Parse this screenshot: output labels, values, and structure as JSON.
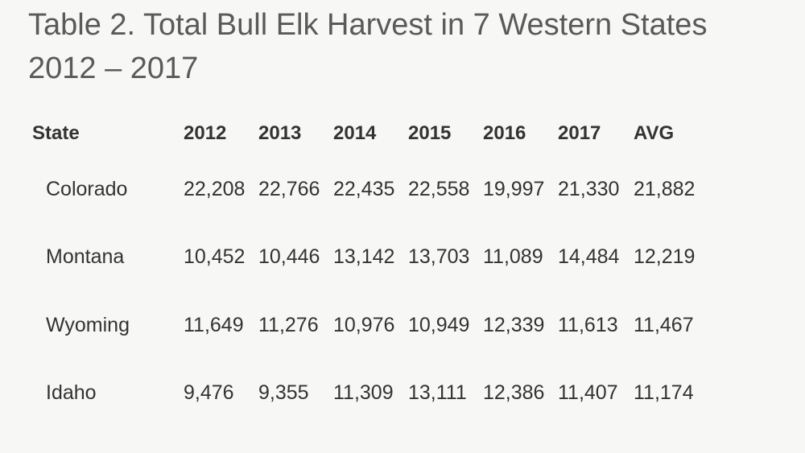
{
  "header": {
    "title": [
      "Table 2. Total Bull Elk Harvest in 7 Western States",
      "2012 – 2017"
    ]
  },
  "table": {
    "columns": [
      "State",
      "2012",
      "2013",
      "2014",
      "2015",
      "2016",
      "2017",
      "AVG"
    ],
    "rows": [
      [
        "Colorado",
        "22,208",
        "22,766",
        "22,435",
        "22,558",
        "19,997",
        "21,330",
        "21,882"
      ],
      [
        "Montana",
        "10,452",
        "10,446",
        "13,142",
        "13,703",
        "11,089",
        "14,484",
        "12,219"
      ],
      [
        "Wyoming",
        "11,649",
        "11,276",
        "10,976",
        "10,949",
        "12,339",
        "11,613",
        "11,467"
      ],
      [
        "Idaho",
        "9,476",
        "9,355",
        "11,309",
        "13,111",
        "12,386",
        "11,407",
        "11,174"
      ]
    ]
  }
}
